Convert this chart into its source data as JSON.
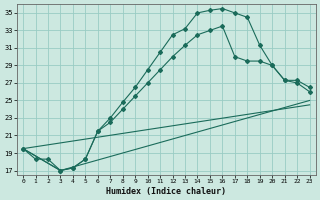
{
  "xlabel": "Humidex (Indice chaleur)",
  "bg_color": "#cce8e0",
  "grid_color": "#99ccc4",
  "line_color": "#1a6b5a",
  "xlim": [
    -0.5,
    23.5
  ],
  "ylim": [
    16.5,
    36.0
  ],
  "xticks": [
    0,
    1,
    2,
    3,
    4,
    5,
    6,
    7,
    8,
    9,
    10,
    11,
    12,
    13,
    14,
    15,
    16,
    17,
    18,
    19,
    20,
    21,
    22,
    23
  ],
  "yticks": [
    17,
    19,
    21,
    23,
    25,
    27,
    29,
    31,
    33,
    35
  ],
  "line1_x": [
    0,
    1,
    2,
    3,
    4,
    5,
    6,
    7,
    8,
    9,
    10,
    11,
    12,
    13,
    14,
    15,
    16,
    17,
    18,
    19,
    20,
    21,
    22,
    23
  ],
  "line1_y": [
    19.5,
    18.3,
    18.3,
    17.0,
    17.3,
    18.3,
    21.5,
    23.0,
    24.8,
    26.5,
    28.5,
    30.5,
    32.5,
    33.2,
    35.0,
    35.3,
    35.5,
    35.0,
    34.5,
    31.3,
    29.0,
    27.3,
    27.3,
    26.5
  ],
  "line2_x": [
    0,
    3,
    4,
    5,
    6,
    7,
    8,
    9,
    10,
    11,
    12,
    13,
    14,
    15,
    16,
    17,
    18,
    19,
    20,
    21,
    22,
    23
  ],
  "line2_y": [
    19.5,
    17.0,
    17.3,
    18.3,
    21.5,
    22.5,
    24.0,
    25.5,
    27.0,
    28.5,
    30.0,
    31.3,
    32.5,
    33.0,
    33.5,
    30.0,
    29.5,
    29.5,
    29.0,
    27.3,
    27.0,
    26.0
  ],
  "line3_x": [
    0,
    3,
    23
  ],
  "line3_y": [
    19.5,
    17.0,
    25.0
  ],
  "line4_x": [
    0,
    23
  ],
  "line4_y": [
    19.5,
    24.5
  ]
}
